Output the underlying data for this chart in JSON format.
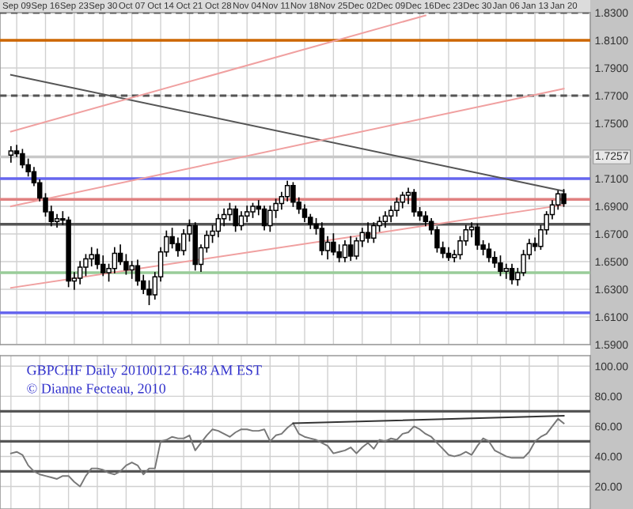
{
  "chart_data": [
    {
      "type": "candlestick",
      "categories": [
        null,
        "Sep 09",
        null,
        null,
        null,
        null,
        "Sep 16",
        null,
        null,
        null,
        null,
        "Sep 23",
        null,
        null,
        null,
        null,
        "Sep 30",
        null,
        null,
        null,
        null,
        "Oct 07",
        null,
        null,
        null,
        null,
        "Oct 14",
        null,
        null,
        null,
        null,
        "Oct 21",
        null,
        null,
        null,
        null,
        "Oct 28",
        null,
        null,
        null,
        null,
        "Nov 04",
        null,
        null,
        null,
        null,
        "Nov 11",
        null,
        null,
        null,
        null,
        "Nov 18",
        null,
        null,
        null,
        null,
        "Nov 25",
        null,
        null,
        null,
        null,
        "Dec 02",
        null,
        null,
        null,
        null,
        "Dec 09",
        null,
        null,
        null,
        null,
        "Dec 16",
        null,
        null,
        null,
        null,
        "Dec 23",
        null,
        null,
        null,
        null,
        "Dec 30",
        null,
        null,
        null,
        null,
        "Jan 06",
        null,
        null,
        null,
        null,
        "Jan 13",
        null,
        null,
        null,
        null,
        "Jan 20"
      ],
      "ohlc": [
        [
          1.727,
          1.733,
          1.722,
          1.73
        ],
        [
          1.73,
          1.734,
          1.726,
          1.728
        ],
        [
          1.728,
          1.731,
          1.718,
          1.72
        ],
        [
          1.72,
          1.724,
          1.712,
          1.715
        ],
        [
          1.715,
          1.718,
          1.705,
          1.707
        ],
        [
          1.707,
          1.709,
          1.694,
          1.696
        ],
        [
          1.696,
          1.699,
          1.683,
          1.686
        ],
        [
          1.686,
          1.69,
          1.676,
          1.679
        ],
        [
          1.679,
          1.684,
          1.675,
          1.681
        ],
        [
          1.681,
          1.686,
          1.677,
          1.68
        ],
        [
          1.68,
          1.682,
          1.632,
          1.636
        ],
        [
          1.636,
          1.642,
          1.63,
          1.638
        ],
        [
          1.638,
          1.65,
          1.634,
          1.646
        ],
        [
          1.646,
          1.655,
          1.64,
          1.652
        ],
        [
          1.652,
          1.66,
          1.647,
          1.655
        ],
        [
          1.655,
          1.659,
          1.645,
          1.648
        ],
        [
          1.648,
          1.654,
          1.64,
          1.642
        ],
        [
          1.642,
          1.648,
          1.636,
          1.645
        ],
        [
          1.645,
          1.66,
          1.642,
          1.656
        ],
        [
          1.656,
          1.662,
          1.648,
          1.65
        ],
        [
          1.65,
          1.655,
          1.641,
          1.644
        ],
        [
          1.644,
          1.65,
          1.638,
          1.647
        ],
        [
          1.647,
          1.651,
          1.633,
          1.636
        ],
        [
          1.636,
          1.64,
          1.627,
          1.63
        ],
        [
          1.63,
          1.636,
          1.619,
          1.626
        ],
        [
          1.626,
          1.642,
          1.623,
          1.639
        ],
        [
          1.639,
          1.66,
          1.636,
          1.657
        ],
        [
          1.657,
          1.672,
          1.654,
          1.668
        ],
        [
          1.668,
          1.674,
          1.66,
          1.663
        ],
        [
          1.663,
          1.667,
          1.654,
          1.658
        ],
        [
          1.658,
          1.673,
          1.655,
          1.67
        ],
        [
          1.67,
          1.68,
          1.665,
          1.676
        ],
        [
          1.676,
          1.678,
          1.644,
          1.648
        ],
        [
          1.648,
          1.662,
          1.643,
          1.66
        ],
        [
          1.66,
          1.672,
          1.657,
          1.669
        ],
        [
          1.669,
          1.676,
          1.664,
          1.672
        ],
        [
          1.672,
          1.684,
          1.668,
          1.681
        ],
        [
          1.681,
          1.688,
          1.676,
          1.684
        ],
        [
          1.684,
          1.692,
          1.68,
          1.688
        ],
        [
          1.688,
          1.69,
          1.672,
          1.676
        ],
        [
          1.676,
          1.686,
          1.673,
          1.683
        ],
        [
          1.683,
          1.69,
          1.679,
          1.686
        ],
        [
          1.686,
          1.692,
          1.682,
          1.69
        ],
        [
          1.69,
          1.694,
          1.684,
          1.688
        ],
        [
          1.688,
          1.69,
          1.673,
          1.676
        ],
        [
          1.676,
          1.69,
          1.672,
          1.687
        ],
        [
          1.687,
          1.695,
          1.682,
          1.692
        ],
        [
          1.692,
          1.7,
          1.688,
          1.697
        ],
        [
          1.697,
          1.708,
          1.694,
          1.705
        ],
        [
          1.705,
          1.707,
          1.69,
          1.693
        ],
        [
          1.693,
          1.696,
          1.685,
          1.688
        ],
        [
          1.688,
          1.691,
          1.679,
          1.682
        ],
        [
          1.682,
          1.684,
          1.674,
          1.677
        ],
        [
          1.677,
          1.681,
          1.67,
          1.674
        ],
        [
          1.674,
          1.678,
          1.655,
          1.658
        ],
        [
          1.658,
          1.668,
          1.652,
          1.664
        ],
        [
          1.664,
          1.67,
          1.655,
          1.657
        ],
        [
          1.657,
          1.662,
          1.65,
          1.653
        ],
        [
          1.653,
          1.665,
          1.65,
          1.662
        ],
        [
          1.662,
          1.668,
          1.651,
          1.654
        ],
        [
          1.654,
          1.667,
          1.652,
          1.665
        ],
        [
          1.665,
          1.674,
          1.661,
          1.671
        ],
        [
          1.671,
          1.678,
          1.664,
          1.667
        ],
        [
          1.667,
          1.678,
          1.664,
          1.676
        ],
        [
          1.676,
          1.682,
          1.672,
          1.679
        ],
        [
          1.679,
          1.686,
          1.675,
          1.683
        ],
        [
          1.683,
          1.69,
          1.679,
          1.687
        ],
        [
          1.687,
          1.696,
          1.683,
          1.693
        ],
        [
          1.693,
          1.7,
          1.689,
          1.698
        ],
        [
          1.698,
          1.703,
          1.692,
          1.7
        ],
        [
          1.7,
          1.702,
          1.683,
          1.686
        ],
        [
          1.686,
          1.689,
          1.68,
          1.683
        ],
        [
          1.683,
          1.686,
          1.676,
          1.679
        ],
        [
          1.679,
          1.681,
          1.67,
          1.673
        ],
        [
          1.673,
          1.675,
          1.657,
          1.66
        ],
        [
          1.66,
          1.664,
          1.653,
          1.656
        ],
        [
          1.656,
          1.66,
          1.651,
          1.653
        ],
        [
          1.653,
          1.658,
          1.65,
          1.655
        ],
        [
          1.655,
          1.668,
          1.652,
          1.665
        ],
        [
          1.665,
          1.676,
          1.662,
          1.673
        ],
        [
          1.673,
          1.678,
          1.668,
          1.675
        ],
        [
          1.675,
          1.677,
          1.659,
          1.662
        ],
        [
          1.662,
          1.665,
          1.655,
          1.659
        ],
        [
          1.659,
          1.663,
          1.65,
          1.653
        ],
        [
          1.653,
          1.657,
          1.646,
          1.649
        ],
        [
          1.649,
          1.654,
          1.64,
          1.643
        ],
        [
          1.643,
          1.648,
          1.638,
          1.645
        ],
        [
          1.645,
          1.648,
          1.634,
          1.637
        ],
        [
          1.637,
          1.645,
          1.633,
          1.642
        ],
        [
          1.642,
          1.658,
          1.64,
          1.655
        ],
        [
          1.655,
          1.666,
          1.652,
          1.663
        ],
        [
          1.663,
          1.667,
          1.658,
          1.661
        ],
        [
          1.661,
          1.676,
          1.659,
          1.673
        ],
        [
          1.673,
          1.686,
          1.67,
          1.684
        ],
        [
          1.684,
          1.694,
          1.681,
          1.691
        ],
        [
          1.691,
          1.701,
          1.688,
          1.699
        ],
        [
          1.699,
          1.702,
          1.69,
          1.692
        ]
      ],
      "series": [
        {
          "type": "line",
          "color": "#555555",
          "values": [
            1.785,
            null,
            null,
            null,
            null,
            null,
            null,
            null,
            null,
            null,
            null,
            null,
            null,
            null,
            null,
            null,
            null,
            null,
            null,
            null,
            null,
            null,
            null,
            null,
            null,
            null,
            null,
            null,
            null,
            null,
            null,
            null,
            null,
            null,
            null,
            null,
            null,
            null,
            null,
            null,
            null,
            null,
            null,
            null,
            null,
            null,
            null,
            null,
            null,
            null,
            null,
            null,
            null,
            null,
            null,
            null,
            null,
            null,
            null,
            null,
            null,
            null,
            null,
            null,
            null,
            null,
            null,
            null,
            null,
            null,
            null,
            null,
            null,
            null,
            null,
            null,
            null,
            null,
            null,
            null,
            null,
            null,
            null,
            null,
            null,
            null,
            null,
            null,
            null,
            null,
            null,
            null,
            null,
            null,
            null,
            null,
            1.701
          ]
        },
        {
          "type": "line",
          "color": "#f0a0a0",
          "values": [
            1.744,
            null,
            null,
            null,
            null,
            null,
            null,
            null,
            null,
            null,
            null,
            null,
            null,
            null,
            null,
            null,
            null,
            null,
            null,
            null,
            null,
            null,
            null,
            null,
            null,
            null,
            null,
            null,
            null,
            null,
            null,
            null,
            null,
            null,
            null,
            null,
            null,
            null,
            null,
            null,
            null,
            null,
            null,
            null,
            null,
            null,
            null,
            null,
            null,
            null,
            null,
            null,
            null,
            null,
            null,
            null,
            null,
            null,
            null,
            null,
            null,
            null,
            null,
            null,
            null,
            null,
            null,
            null,
            null,
            null,
            null,
            null,
            1.828,
            null,
            null,
            null,
            null,
            null,
            null,
            null,
            null,
            null,
            null,
            null,
            null,
            null,
            null,
            null,
            null,
            null,
            null,
            null,
            null,
            null,
            null,
            null,
            null
          ]
        },
        {
          "type": "line",
          "color": "#f0a0a0",
          "values": [
            1.69,
            null,
            null,
            null,
            null,
            null,
            null,
            null,
            null,
            null,
            null,
            null,
            null,
            null,
            null,
            null,
            null,
            null,
            null,
            null,
            null,
            null,
            null,
            null,
            null,
            null,
            null,
            null,
            null,
            null,
            null,
            null,
            null,
            null,
            null,
            null,
            null,
            null,
            null,
            null,
            null,
            null,
            null,
            null,
            null,
            null,
            null,
            null,
            null,
            null,
            null,
            null,
            null,
            null,
            null,
            null,
            null,
            null,
            null,
            null,
            null,
            null,
            null,
            null,
            null,
            null,
            null,
            null,
            null,
            null,
            null,
            null,
            null,
            null,
            null,
            null,
            null,
            null,
            null,
            null,
            null,
            null,
            null,
            null,
            null,
            null,
            null,
            null,
            null,
            null,
            null,
            null,
            null,
            null,
            null,
            null,
            1.775
          ]
        },
        {
          "type": "line",
          "color": "#f0a0a0",
          "values": [
            1.631,
            null,
            null,
            null,
            null,
            null,
            null,
            null,
            null,
            null,
            null,
            null,
            null,
            null,
            null,
            null,
            null,
            null,
            null,
            null,
            null,
            null,
            null,
            null,
            null,
            null,
            null,
            null,
            null,
            null,
            null,
            null,
            null,
            null,
            null,
            null,
            null,
            null,
            null,
            null,
            null,
            null,
            null,
            null,
            null,
            null,
            null,
            null,
            null,
            null,
            null,
            null,
            null,
            null,
            null,
            null,
            null,
            null,
            null,
            null,
            null,
            null,
            null,
            null,
            null,
            null,
            null,
            null,
            null,
            null,
            null,
            null,
            null,
            null,
            null,
            null,
            null,
            null,
            null,
            null,
            null,
            null,
            null,
            null,
            null,
            null,
            null,
            null,
            null,
            null,
            null,
            null,
            null,
            null,
            null,
            null,
            1.691
          ]
        }
      ],
      "ylim": [
        1.59,
        1.83
      ],
      "yticks": [
        {
          "value": 1.59,
          "label": "1.5900"
        },
        {
          "value": 1.61,
          "label": "1.6100"
        },
        {
          "value": 1.63,
          "label": "1.6300"
        },
        {
          "value": 1.65,
          "label": "1.6500"
        },
        {
          "value": 1.67,
          "label": "1.6700"
        },
        {
          "value": 1.69,
          "label": "1.6900"
        },
        {
          "value": 1.71,
          "label": "1.7100"
        },
        {
          "value": 1.75,
          "label": "1.7500"
        },
        {
          "value": 1.77,
          "label": "1.7700"
        },
        {
          "value": 1.79,
          "label": "1.7900"
        },
        {
          "value": 1.81,
          "label": "1.8100"
        },
        {
          "value": 1.83,
          "label": "1.8300"
        }
      ],
      "ref_lines": [
        {
          "axis": "y",
          "value": 1.83,
          "color": "#555555",
          "line_style": "dashed"
        },
        {
          "axis": "y",
          "value": 1.81,
          "color": "#cc6600"
        },
        {
          "axis": "y",
          "value": 1.77,
          "color": "#555555",
          "line_style": "dashed"
        },
        {
          "axis": "y",
          "value": 1.7257,
          "label": "1.7257",
          "color": "#c8c8c8"
        },
        {
          "axis": "y",
          "value": 1.71,
          "color": "#6666ee"
        },
        {
          "axis": "y",
          "value": 1.695,
          "color": "#e08080"
        },
        {
          "axis": "y",
          "value": 1.677,
          "color": "#555555"
        },
        {
          "axis": "y",
          "value": 1.642,
          "color": "#99cc99"
        },
        {
          "axis": "y",
          "value": 1.613,
          "color": "#6666ee"
        }
      ],
      "grid": true
    },
    {
      "type": "line",
      "categories": [
        null,
        null,
        null,
        null,
        null,
        null,
        null,
        null,
        null,
        null,
        null,
        null,
        null,
        null,
        null,
        null,
        null,
        null,
        null,
        null,
        null,
        null,
        null,
        null,
        null,
        null,
        null,
        null,
        null,
        null,
        null,
        null,
        null,
        null,
        null,
        null,
        null,
        null,
        null,
        null,
        null,
        null,
        null,
        null,
        null,
        null,
        null,
        null,
        null,
        null,
        null,
        null,
        null,
        null,
        null,
        null,
        null,
        null,
        null,
        null,
        null,
        null,
        null,
        null,
        null,
        null,
        null,
        null,
        null,
        null,
        null,
        null,
        null,
        null,
        null,
        null,
        null,
        null,
        null,
        null,
        null,
        null,
        null,
        null,
        null,
        null,
        null,
        null,
        null,
        null,
        null,
        null,
        null,
        null,
        null,
        null,
        null
      ],
      "series": [
        {
          "color": "#777777",
          "values": [
            42,
            43,
            41,
            34,
            30,
            28,
            27,
            26,
            25,
            27,
            27,
            23,
            20,
            27,
            32,
            32,
            31,
            29,
            28,
            30,
            34,
            36,
            34,
            28,
            32,
            32,
            50,
            51,
            53,
            52,
            52,
            54,
            44,
            49,
            54,
            58,
            57,
            55,
            53,
            56,
            58,
            58,
            57,
            57,
            58,
            50,
            54,
            55,
            59,
            62,
            55,
            53,
            52,
            51,
            49,
            47,
            42,
            43,
            44,
            46,
            42,
            46,
            49,
            45,
            51,
            50,
            52,
            51,
            55,
            56,
            60,
            58,
            55,
            53,
            49,
            45,
            41,
            40,
            41,
            43,
            41,
            47,
            52,
            50,
            44,
            42,
            40,
            39,
            39,
            39,
            43,
            50,
            53,
            55,
            60,
            65,
            62
          ]
        },
        {
          "color": "#333333",
          "values": [
            null,
            null,
            null,
            null,
            null,
            null,
            null,
            null,
            null,
            null,
            null,
            null,
            null,
            null,
            null,
            null,
            null,
            null,
            null,
            null,
            null,
            null,
            null,
            null,
            null,
            null,
            null,
            null,
            null,
            null,
            null,
            null,
            null,
            null,
            null,
            null,
            null,
            null,
            null,
            null,
            null,
            null,
            null,
            null,
            null,
            null,
            null,
            null,
            null,
            62,
            null,
            null,
            null,
            null,
            null,
            null,
            null,
            null,
            null,
            null,
            null,
            null,
            null,
            null,
            null,
            null,
            null,
            null,
            null,
            null,
            null,
            null,
            null,
            null,
            null,
            null,
            null,
            null,
            null,
            null,
            null,
            null,
            null,
            null,
            null,
            null,
            null,
            null,
            null,
            null,
            null,
            null,
            null,
            null,
            null,
            null,
            67
          ]
        }
      ],
      "ylim": [
        5,
        107
      ],
      "yticks": [
        {
          "value": 20,
          "label": "20.00"
        },
        {
          "value": 40,
          "label": "40.00"
        },
        {
          "value": 60,
          "label": "60.00"
        },
        {
          "value": 80,
          "label": "80.00"
        },
        {
          "value": 100,
          "label": "100.00"
        }
      ],
      "ref_lines": [
        {
          "axis": "y",
          "value": 70,
          "color": "#555555"
        },
        {
          "axis": "y",
          "value": 50,
          "color": "#555555"
        },
        {
          "axis": "y",
          "value": 30,
          "color": "#555555"
        }
      ],
      "annotations": [
        "GBPCHF Daily 20100121 6:48 AM EST",
        "© Dianne Fecteau, 2010"
      ],
      "tick_labels": "y",
      "grid": true
    }
  ]
}
